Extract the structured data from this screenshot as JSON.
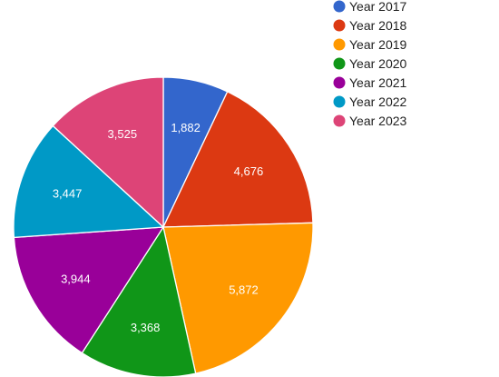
{
  "chart_data": {
    "type": "pie",
    "title": "",
    "legend_position": "right",
    "start_angle_deg": 0,
    "direction": "clockwise",
    "slices": [
      {
        "label": "Year 2017",
        "value": 1882,
        "value_label": "1,882",
        "color": "#3366cc"
      },
      {
        "label": "Year 2018",
        "value": 4676,
        "value_label": "4,676",
        "color": "#dc3912"
      },
      {
        "label": "Year 2019",
        "value": 5872,
        "value_label": "5,872",
        "color": "#ff9900"
      },
      {
        "label": "Year 2020",
        "value": 3368,
        "value_label": "3,368",
        "color": "#109618"
      },
      {
        "label": "Year 2021",
        "value": 3944,
        "value_label": "3,944",
        "color": "#990099"
      },
      {
        "label": "Year 2022",
        "value": 3447,
        "value_label": "3,447",
        "color": "#0099c6"
      },
      {
        "label": "Year 2023",
        "value": 3525,
        "value_label": "3,525",
        "color": "#dd4477"
      }
    ]
  }
}
